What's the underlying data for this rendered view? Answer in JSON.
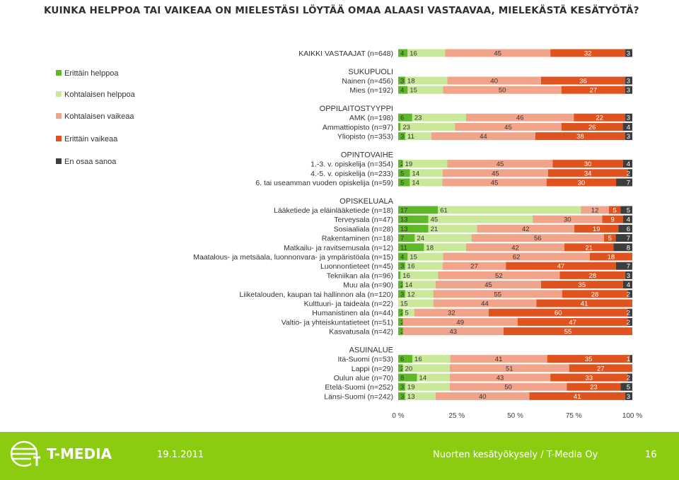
{
  "slide": {
    "title": "Kuinka helppoa tai vaikeaa on mielestäsi löytää omaa alaasi vastaavaa, mielekästä kesätyötä?",
    "footer_date": "19.1.2011",
    "footer_text": "Nuorten kesätyökysely / T-Media Oy",
    "page_number": "16",
    "brand": "T-MEDIA"
  },
  "chart_data": {
    "type": "bar",
    "stacked": true,
    "orientation": "horizontal",
    "title": "",
    "xlim": [
      0,
      100
    ],
    "x_ticks": [
      "0 %",
      "25 %",
      "50 %",
      "75 %",
      "100 %"
    ],
    "legend_position": "left",
    "series": [
      {
        "name": "Erittäin helppoa",
        "color": "#5fb82a"
      },
      {
        "name": "Kohtalaisen helppoa",
        "color": "#c9e89a"
      },
      {
        "name": "Kohtalaisen vaikeaa",
        "color": "#f2a48a"
      },
      {
        "name": "Erittäin vaikeaa",
        "color": "#e0531f"
      },
      {
        "name": "En osaa sanoa",
        "color": "#3d3d3d"
      }
    ],
    "rows": [
      {
        "kind": "bar",
        "label": "KAIKKI VASTAAJAT (n=648)",
        "values": [
          4,
          16,
          45,
          32,
          3
        ]
      },
      {
        "kind": "header",
        "label": "SUKUPUOLI"
      },
      {
        "kind": "bar",
        "label": "Nainen (n=456)",
        "values": [
          3,
          18,
          40,
          36,
          3
        ]
      },
      {
        "kind": "bar",
        "label": "Mies (n=192)",
        "values": [
          4,
          15,
          50,
          27,
          3
        ]
      },
      {
        "kind": "header",
        "label": "OPPILAITOSTYYPPI"
      },
      {
        "kind": "bar",
        "label": "AMK (n=198)",
        "values": [
          6,
          23,
          46,
          22,
          3
        ]
      },
      {
        "kind": "bar",
        "label": "Ammattiopisto (n=97)",
        "values": [
          1,
          23,
          45,
          26,
          4
        ]
      },
      {
        "kind": "bar",
        "label": "Yliopisto (n=353)",
        "values": [
          3,
          11,
          44,
          38,
          3
        ]
      },
      {
        "kind": "header",
        "label": "OPINTOVAIHE"
      },
      {
        "kind": "bar",
        "label": "1.-3. v. opiskelija (n=354)",
        "values": [
          2,
          19,
          45,
          30,
          4
        ]
      },
      {
        "kind": "bar",
        "label": "4.-5. v. opiskelija (n=233)",
        "values": [
          5,
          14,
          45,
          34,
          2
        ]
      },
      {
        "kind": "bar",
        "label": "6. tai useamman vuoden opiskelija (n=59)",
        "values": [
          5,
          14,
          45,
          30,
          7
        ]
      },
      {
        "kind": "header",
        "label": "OPISKELUALA"
      },
      {
        "kind": "bar",
        "label": "Lääketiede ja eläinlääketiede (n=18)",
        "values": [
          17,
          61,
          12,
          5,
          5
        ]
      },
      {
        "kind": "bar",
        "label": "Terveysala (n=47)",
        "values": [
          13,
          45,
          30,
          9,
          4
        ]
      },
      {
        "kind": "bar",
        "label": "Sosiaaliala (n=28)",
        "values": [
          13,
          21,
          42,
          19,
          6
        ]
      },
      {
        "kind": "bar",
        "label": "Rakentaminen (n=18)",
        "values": [
          7,
          24,
          56,
          5,
          7
        ]
      },
      {
        "kind": "bar",
        "label": "Matkailu- ja ravitsemusala (n=12)",
        "values": [
          11,
          18,
          42,
          21,
          8
        ]
      },
      {
        "kind": "bar",
        "label": "Maatalous- ja metsäala, luonnonvara- ja ympäristöala (n=15)",
        "values": [
          4,
          15,
          62,
          18,
          0
        ]
      },
      {
        "kind": "bar",
        "label": "Luonnontieteet (n=45)",
        "values": [
          3,
          16,
          27,
          47,
          7
        ]
      },
      {
        "kind": "bar",
        "label": "Tekniikan ala (n=96)",
        "values": [
          1,
          16,
          52,
          28,
          3
        ]
      },
      {
        "kind": "bar",
        "label": "Muu ala (n=90)",
        "values": [
          2,
          14,
          45,
          35,
          4
        ]
      },
      {
        "kind": "bar",
        "label": "Liiketalouden, kaupan tai hallinnon ala (n=120)",
        "values": [
          3,
          12,
          55,
          28,
          2
        ]
      },
      {
        "kind": "bar",
        "label": "Kulttuuri- ja taideala (n=22)",
        "values": [
          0,
          15,
          44,
          41,
          0
        ]
      },
      {
        "kind": "bar",
        "label": "Humanistinen ala (n=44)",
        "values": [
          2,
          5,
          32,
          60,
          2
        ]
      },
      {
        "kind": "bar",
        "label": "Valtio- ja yhteiskuntatieteet (n=51)",
        "values": [
          2,
          0,
          49,
          47,
          2
        ]
      },
      {
        "kind": "bar",
        "label": "Kasvatusala (n=42)",
        "values": [
          2,
          0,
          43,
          55,
          0
        ]
      },
      {
        "kind": "header",
        "label": "ASUINALUE"
      },
      {
        "kind": "bar",
        "label": "Itä-Suomi (n=53)",
        "values": [
          6,
          16,
          41,
          35,
          1
        ]
      },
      {
        "kind": "bar",
        "label": "Lappi (n=29)",
        "values": [
          2,
          20,
          51,
          27,
          0
        ]
      },
      {
        "kind": "bar",
        "label": "Oulun alue (n=70)",
        "values": [
          8,
          14,
          43,
          33,
          2
        ]
      },
      {
        "kind": "bar",
        "label": "Etelä-Suomi (n=252)",
        "values": [
          3,
          19,
          50,
          23,
          5
        ]
      },
      {
        "kind": "bar",
        "label": "Länsi-Suomi (n=242)",
        "values": [
          3,
          13,
          40,
          41,
          3
        ]
      }
    ]
  }
}
